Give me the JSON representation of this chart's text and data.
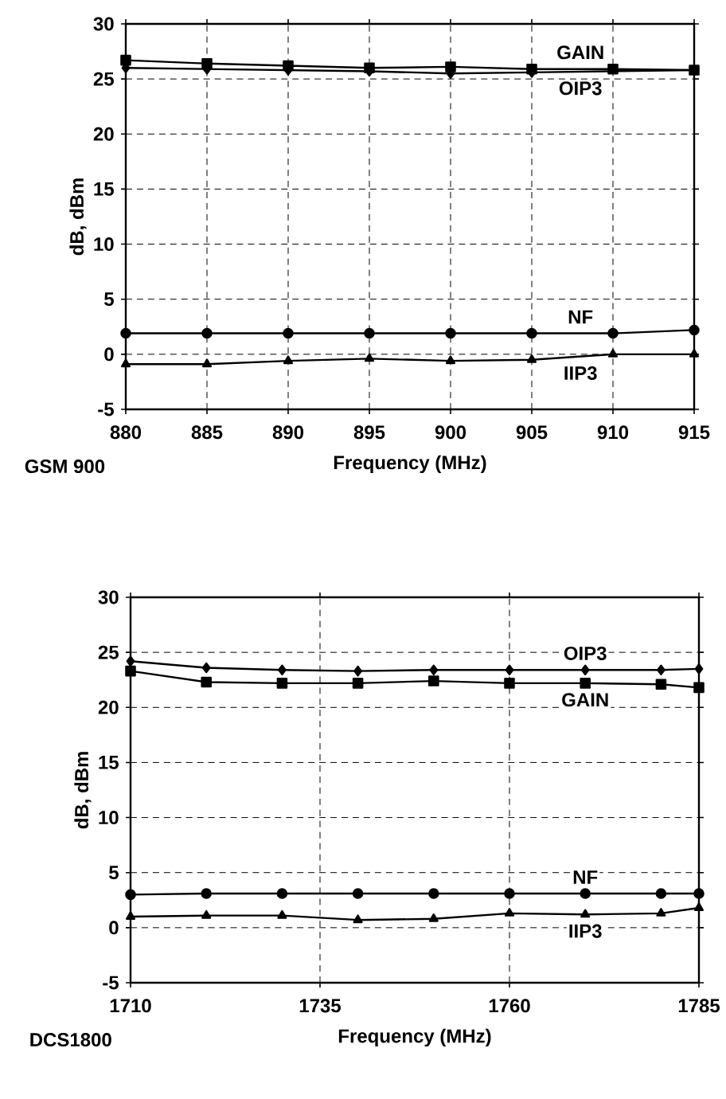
{
  "chart_data": [
    {
      "type": "line",
      "xlabel": "Frequency (MHz)",
      "ylabel": "dB, dBm",
      "x": [
        880,
        885,
        890,
        895,
        900,
        905,
        910,
        915
      ],
      "xlim": [
        880,
        915
      ],
      "xticks": [
        880,
        885,
        890,
        895,
        900,
        905,
        910,
        915
      ],
      "ylim": [
        -5,
        30
      ],
      "yticks": [
        -5,
        0,
        5,
        10,
        15,
        20,
        25,
        30
      ],
      "grid": true,
      "line_style": "solid",
      "series": [
        {
          "name": "GAIN",
          "color": "#000000",
          "marker": "square",
          "values": [
            26.7,
            26.4,
            26.2,
            26.0,
            26.1,
            25.9,
            25.9,
            25.8
          ]
        },
        {
          "name": "OIP3",
          "color": "#000000",
          "marker": "diamond",
          "values": [
            26.0,
            25.9,
            25.8,
            25.7,
            25.5,
            25.6,
            null,
            25.8
          ]
        },
        {
          "name": "NF",
          "color": "#000000",
          "marker": "circle",
          "values": [
            1.9,
            1.9,
            1.9,
            1.9,
            1.9,
            1.9,
            1.9,
            2.2
          ]
        },
        {
          "name": "IIP3",
          "color": "#000000",
          "marker": "triangle",
          "values": [
            -0.9,
            -0.9,
            -0.6,
            -0.4,
            -0.6,
            -0.5,
            0.0,
            0.0
          ]
        }
      ],
      "annotations": [
        "GSM 900"
      ]
    },
    {
      "type": "line",
      "xlabel": "Frequency (MHz)",
      "ylabel": "dB, dBm",
      "x": [
        1710,
        1720,
        1730,
        1740,
        1750,
        1760,
        1770,
        1780,
        1785
      ],
      "xlim": [
        1710,
        1785
      ],
      "xticks": [
        1710,
        1735,
        1760,
        1785
      ],
      "ylim": [
        -5,
        30
      ],
      "yticks": [
        -5,
        0,
        5,
        10,
        15,
        20,
        25,
        30
      ],
      "grid": true,
      "line_style": "solid",
      "series": [
        {
          "name": "OIP3",
          "color": "#000000",
          "marker": "diamond",
          "values": [
            24.2,
            23.6,
            23.4,
            23.3,
            23.4,
            23.4,
            23.4,
            23.4,
            23.5
          ]
        },
        {
          "name": "GAIN",
          "color": "#000000",
          "marker": "square",
          "values": [
            23.3,
            22.3,
            22.2,
            22.2,
            22.4,
            22.2,
            22.2,
            22.1,
            21.8
          ]
        },
        {
          "name": "NF",
          "color": "#000000",
          "marker": "circle",
          "values": [
            3.0,
            3.1,
            3.1,
            3.1,
            3.1,
            3.1,
            3.1,
            3.1,
            3.1
          ]
        },
        {
          "name": "IIP3",
          "color": "#000000",
          "marker": "triangle",
          "values": [
            1.0,
            1.1,
            1.1,
            0.7,
            0.8,
            1.3,
            1.2,
            1.3,
            1.8
          ]
        }
      ],
      "annotations": [
        "DCS1800"
      ]
    }
  ]
}
